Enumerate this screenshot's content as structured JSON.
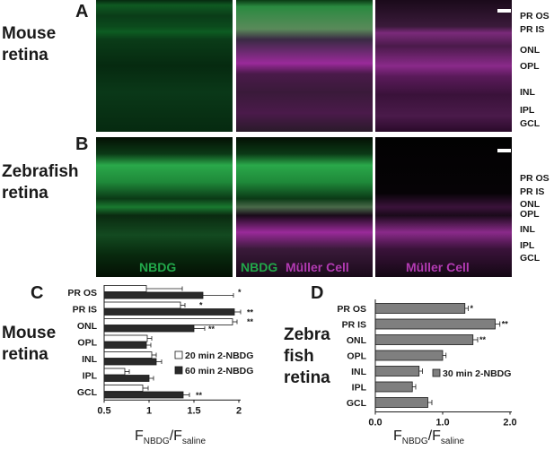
{
  "panel_a": {
    "letter": "A",
    "title_line1": "Mouse",
    "title_line2": "retina",
    "layers": [
      "PR OS",
      "PR IS",
      "ONL",
      "OPL",
      "INL",
      "IPL",
      "GCL"
    ]
  },
  "panel_b": {
    "letter": "B",
    "title_line1": "Zebrafish",
    "title_line2": "retina",
    "layers": [
      "PR OS",
      "PR IS",
      "ONL",
      "OPL",
      "INL",
      "IPL",
      "GCL"
    ],
    "label_nbdg": "NBDG",
    "label_muller": "Müller Cell"
  },
  "colors": {
    "green": "#22a84a",
    "magenta": "#b23ab2",
    "dark_bar": "#2a2a2a",
    "gray_bar": "#7f7f7f"
  },
  "panel_c": {
    "letter": "C",
    "title_line1": "Mouse",
    "title_line2": "retina",
    "xlabel_main": "F",
    "xlabel_sub1": "NBDG",
    "xlabel_slash": "/F",
    "xlabel_sub2": "saline"
  },
  "panel_d": {
    "letter": "D",
    "title_line1": "Zebra",
    "title_line2": "fish",
    "title_line3": "retina",
    "xlabel_main": "F",
    "xlabel_sub1": "NBDG",
    "xlabel_slash": "/F",
    "xlabel_sub2": "saline"
  },
  "chart_data": [
    {
      "type": "bar",
      "orientation": "horizontal",
      "categories": [
        "PR OS",
        "PR IS",
        "ONL",
        "OPL",
        "INL",
        "IPL",
        "GCL"
      ],
      "series": [
        {
          "name": "20 min 2-NBDG",
          "color": "#ffffff",
          "values": [
            0.97,
            1.35,
            1.93,
            0.98,
            1.03,
            0.73,
            0.93
          ],
          "errors": [
            0.4,
            0.05,
            0.05,
            0.05,
            0.05,
            0.05,
            0.06
          ]
        },
        {
          "name": "60 min 2-NBDG",
          "color": "#2a2a2a",
          "values": [
            1.6,
            1.95,
            1.5,
            0.97,
            1.08,
            1.0,
            1.38
          ],
          "errors": [
            0.34,
            0.07,
            0.12,
            0.05,
            0.06,
            0.05,
            0.07
          ]
        }
      ],
      "significance": [
        [
          "*"
        ],
        [
          "*",
          "**"
        ],
        [
          "**",
          "**"
        ],
        [],
        [],
        [],
        [
          "**"
        ]
      ],
      "xlim": [
        0.5,
        2.0
      ],
      "xticks": [
        "0.5",
        "1",
        "1.5",
        "2"
      ]
    },
    {
      "type": "bar",
      "orientation": "horizontal",
      "categories": [
        "PR OS",
        "PR IS",
        "ONL",
        "OPL",
        "INL",
        "IPL",
        "GCL"
      ],
      "series": [
        {
          "name": "30 min 2-NBDG",
          "color": "#7f7f7f",
          "values": [
            1.33,
            1.78,
            1.45,
            1.0,
            0.65,
            0.55,
            0.78
          ],
          "errors": [
            0.05,
            0.07,
            0.07,
            0.05,
            0.05,
            0.05,
            0.06
          ]
        }
      ],
      "significance": [
        "*",
        "**",
        "**",
        "",
        "",
        "",
        ""
      ],
      "xlim": [
        0.0,
        2.0
      ],
      "xticks": [
        "0.0",
        "1.0",
        "2.0"
      ]
    }
  ]
}
